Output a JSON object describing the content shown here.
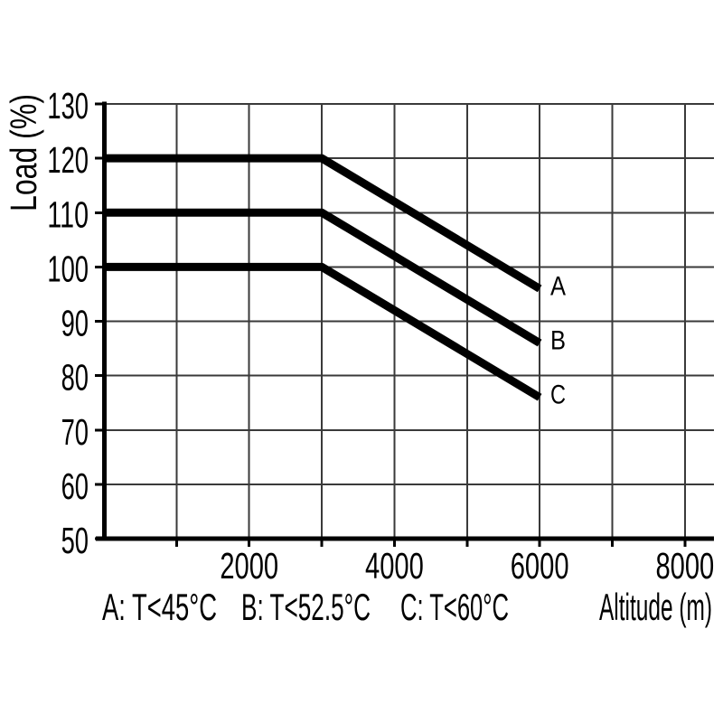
{
  "figure": {
    "background": "#ffffff",
    "description": "Load derating vs altitude chart"
  },
  "chart_data": {
    "type": "line",
    "title": "",
    "xlabel": "Altitude (m)",
    "ylabel": "Load (%)",
    "grid": true,
    "legend_position": "bottom-left",
    "x_axis": {
      "min": 0,
      "max": 8400,
      "gridline_step": 1000,
      "gridlines": [
        1000,
        2000,
        3000,
        4000,
        5000,
        6000,
        7000,
        8000
      ],
      "labeled_ticks": [
        2000,
        4000,
        6000,
        8000
      ]
    },
    "y_axis": {
      "min": 50,
      "max": 130,
      "gridline_step": 10,
      "labeled_ticks": [
        130,
        120,
        110,
        100,
        90,
        80,
        70,
        60,
        50
      ]
    },
    "series": [
      {
        "name": "A",
        "legend": "A: T<45°C",
        "points": [
          [
            0,
            120
          ],
          [
            3000,
            120
          ],
          [
            6000,
            96
          ]
        ]
      },
      {
        "name": "B",
        "legend": "B: T<52.5°C",
        "points": [
          [
            0,
            110
          ],
          [
            3000,
            110
          ],
          [
            6000,
            86
          ]
        ]
      },
      {
        "name": "C",
        "legend": "C: T<60°C",
        "points": [
          [
            0,
            100
          ],
          [
            3000,
            100
          ],
          [
            6000,
            76
          ]
        ]
      }
    ],
    "colors": {
      "line": "#000000",
      "grid": "#3a3a3a",
      "axis": "#000000",
      "text": "#000000",
      "background": "#ffffff"
    }
  }
}
